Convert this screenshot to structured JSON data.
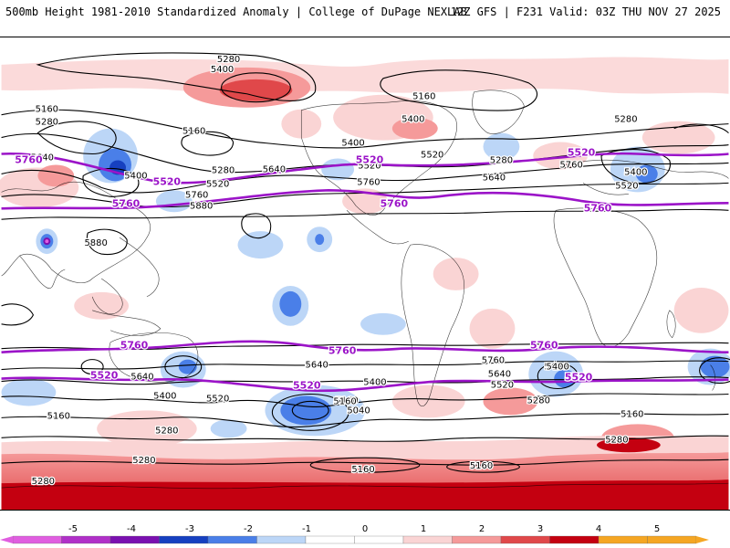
{
  "header": {
    "left": "500mb Height 1981-2010 Standardized Anomaly | College of DuPage NEXLAB",
    "right": "12Z GFS | F231 Valid: 03Z THU NOV 27 2025"
  },
  "colors": {
    "neg5": "#e05ee0",
    "neg4": "#7a10b0",
    "neg3": "#1640c0",
    "neg2": "#4a7fe8",
    "neg1": "#bcd6f7",
    "pos1": "#fad4d4",
    "pos2": "#f59a9a",
    "pos3": "#e0484a",
    "pos4": "#c40010",
    "pos5": "#f5a623",
    "contour": "#000000",
    "highlight": "#9b14c8"
  },
  "colorbar": {
    "ticks": [
      "-5",
      "-4",
      "-3",
      "-2",
      "-1",
      "0",
      "1",
      "2",
      "3",
      "4",
      "5"
    ]
  },
  "contour_labels": [
    {
      "id": "c1",
      "text": "5280"
    },
    {
      "id": "c2",
      "text": "5400"
    },
    {
      "id": "c3",
      "text": "5160"
    },
    {
      "id": "c4",
      "text": "5280"
    },
    {
      "id": "c5",
      "text": "5160"
    },
    {
      "id": "c6",
      "text": "5400"
    },
    {
      "id": "c7",
      "text": "5280"
    },
    {
      "id": "c8",
      "text": "5520"
    },
    {
      "id": "c9",
      "text": "5640"
    },
    {
      "id": "c10",
      "text": "5880"
    },
    {
      "id": "c11",
      "text": "5880"
    },
    {
      "id": "c12",
      "text": "5400"
    },
    {
      "id": "c13",
      "text": "5160"
    },
    {
      "id": "c14",
      "text": "5400"
    },
    {
      "id": "c15",
      "text": "5520"
    },
    {
      "id": "c16",
      "text": "5760"
    },
    {
      "id": "c17",
      "text": "5640"
    },
    {
      "id": "c18",
      "text": "5280"
    },
    {
      "id": "c19",
      "text": "5760"
    },
    {
      "id": "c20",
      "text": "5400"
    },
    {
      "id": "c21",
      "text": "5520"
    },
    {
      "id": "c22",
      "text": "5280"
    },
    {
      "id": "c23",
      "text": "5640"
    },
    {
      "id": "c24",
      "text": "5760"
    },
    {
      "id": "c25",
      "text": "5520"
    },
    {
      "id": "c26",
      "text": "5640"
    },
    {
      "id": "c27",
      "text": "5400"
    },
    {
      "id": "c28",
      "text": "5160"
    },
    {
      "id": "c29",
      "text": "5280"
    },
    {
      "id": "c30",
      "text": "5280"
    },
    {
      "id": "c31",
      "text": "5640"
    },
    {
      "id": "c32",
      "text": "5520"
    },
    {
      "id": "c33",
      "text": "5400"
    },
    {
      "id": "c34",
      "text": "5160"
    },
    {
      "id": "c35",
      "text": "5040"
    },
    {
      "id": "c36",
      "text": "5400"
    },
    {
      "id": "c37",
      "text": "5760"
    },
    {
      "id": "c38",
      "text": "5640"
    },
    {
      "id": "c39",
      "text": "5520"
    },
    {
      "id": "c40",
      "text": "5400"
    },
    {
      "id": "c41",
      "text": "5280"
    },
    {
      "id": "c42",
      "text": "5160"
    },
    {
      "id": "c43",
      "text": "5280"
    },
    {
      "id": "c44",
      "text": "5160"
    },
    {
      "id": "c45",
      "text": "5160"
    },
    {
      "id": "c46",
      "text": "5280"
    },
    {
      "id": "c47",
      "text": "5160"
    }
  ],
  "highlight_labels": [
    {
      "id": "h1",
      "text": "5520"
    },
    {
      "id": "h2",
      "text": "5760"
    },
    {
      "id": "h3",
      "text": "5520"
    },
    {
      "id": "h4",
      "text": "5760"
    },
    {
      "id": "h5",
      "text": "5520"
    },
    {
      "id": "h6",
      "text": "5760"
    },
    {
      "id": "h7",
      "text": "5760"
    },
    {
      "id": "h8",
      "text": "5520"
    },
    {
      "id": "h9",
      "text": "5760"
    },
    {
      "id": "h10",
      "text": "5520"
    },
    {
      "id": "h11",
      "text": "5760"
    },
    {
      "id": "h12",
      "text": "5520"
    },
    {
      "id": "h13",
      "text": "5760"
    },
    {
      "id": "h14",
      "text": "5520"
    }
  ]
}
